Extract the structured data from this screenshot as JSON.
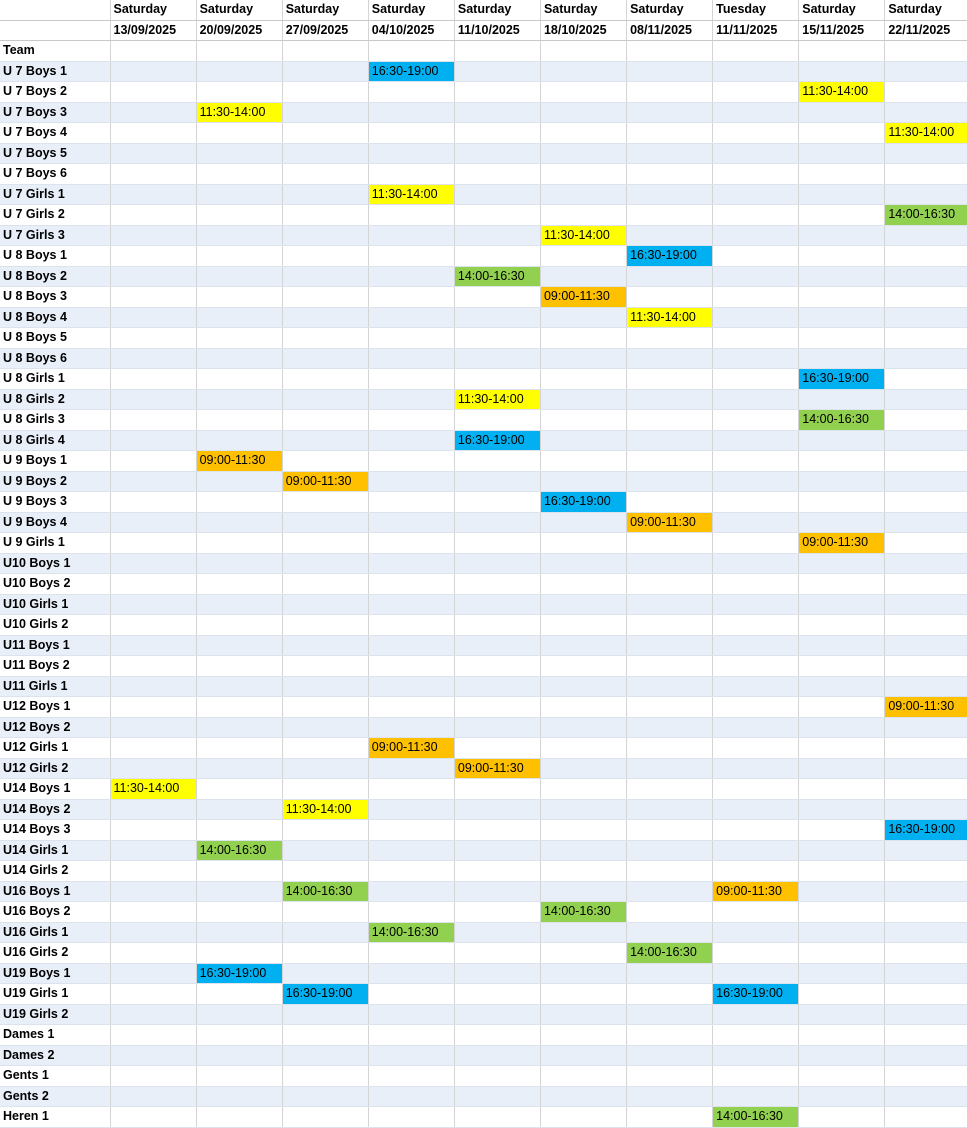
{
  "header": {
    "days": [
      "Saturday",
      "Saturday",
      "Saturday",
      "Saturday",
      "Saturday",
      "Saturday",
      "Saturday",
      "Tuesday",
      "Saturday",
      "Saturday"
    ],
    "dates": [
      "13/09/2025",
      "20/09/2025",
      "27/09/2025",
      "04/10/2025",
      "11/10/2025",
      "18/10/2025",
      "08/11/2025",
      "11/11/2025",
      "15/11/2025",
      "22/11/2025"
    ]
  },
  "team_header": "Team",
  "colors": {
    "yellow": "#ffff00",
    "orange": "#ffc000",
    "green": "#92d050",
    "blue": "#00b0f0"
  },
  "rows": [
    {
      "team": "U 7 Boys 1",
      "slots": [
        "",
        "",
        "",
        "16:30-19:00",
        "",
        "",
        "",
        "",
        "",
        ""
      ]
    },
    {
      "team": "U 7 Boys 2",
      "slots": [
        "",
        "",
        "",
        "",
        "",
        "",
        "",
        "",
        "11:30-14:00",
        ""
      ]
    },
    {
      "team": "U 7 Boys 3",
      "slots": [
        "",
        "11:30-14:00",
        "",
        "",
        "",
        "",
        "",
        "",
        "",
        ""
      ]
    },
    {
      "team": "U 7 Boys 4",
      "slots": [
        "",
        "",
        "",
        "",
        "",
        "",
        "",
        "",
        "",
        "11:30-14:00"
      ]
    },
    {
      "team": "U 7 Boys 5",
      "slots": [
        "",
        "",
        "",
        "",
        "",
        "",
        "",
        "",
        "",
        ""
      ]
    },
    {
      "team": "U 7 Boys 6",
      "slots": [
        "",
        "",
        "",
        "",
        "",
        "",
        "",
        "",
        "",
        ""
      ]
    },
    {
      "team": "U 7 Girls 1",
      "slots": [
        "",
        "",
        "",
        "11:30-14:00",
        "",
        "",
        "",
        "",
        "",
        ""
      ]
    },
    {
      "team": "U 7 Girls 2",
      "slots": [
        "",
        "",
        "",
        "",
        "",
        "",
        "",
        "",
        "",
        "14:00-16:30"
      ]
    },
    {
      "team": "U 7 Girls 3",
      "slots": [
        "",
        "",
        "",
        "",
        "",
        "11:30-14:00",
        "",
        "",
        "",
        ""
      ]
    },
    {
      "team": "U 8 Boys 1",
      "slots": [
        "",
        "",
        "",
        "",
        "",
        "",
        "16:30-19:00",
        "",
        "",
        ""
      ]
    },
    {
      "team": "U 8 Boys 2",
      "slots": [
        "",
        "",
        "",
        "",
        "14:00-16:30",
        "",
        "",
        "",
        "",
        ""
      ]
    },
    {
      "team": "U 8 Boys 3",
      "slots": [
        "",
        "",
        "",
        "",
        "",
        "09:00-11:30",
        "",
        "",
        "",
        ""
      ]
    },
    {
      "team": "U 8 Boys 4",
      "slots": [
        "",
        "",
        "",
        "",
        "",
        "",
        "11:30-14:00",
        "",
        "",
        ""
      ]
    },
    {
      "team": "U 8 Boys 5",
      "slots": [
        "",
        "",
        "",
        "",
        "",
        "",
        "",
        "",
        "",
        ""
      ]
    },
    {
      "team": "U 8 Boys 6",
      "slots": [
        "",
        "",
        "",
        "",
        "",
        "",
        "",
        "",
        "",
        ""
      ]
    },
    {
      "team": "U 8 Girls 1",
      "slots": [
        "",
        "",
        "",
        "",
        "",
        "",
        "",
        "",
        "16:30-19:00",
        ""
      ]
    },
    {
      "team": "U 8 Girls 2",
      "slots": [
        "",
        "",
        "",
        "",
        "11:30-14:00",
        "",
        "",
        "",
        "",
        ""
      ]
    },
    {
      "team": "U 8 Girls 3",
      "slots": [
        "",
        "",
        "",
        "",
        "",
        "",
        "",
        "",
        "14:00-16:30",
        ""
      ]
    },
    {
      "team": "U 8 Girls 4",
      "slots": [
        "",
        "",
        "",
        "",
        "16:30-19:00",
        "",
        "",
        "",
        "",
        ""
      ]
    },
    {
      "team": "U 9 Boys 1",
      "slots": [
        "",
        "09:00-11:30",
        "",
        "",
        "",
        "",
        "",
        "",
        "",
        ""
      ]
    },
    {
      "team": "U 9 Boys 2",
      "slots": [
        "",
        "",
        "09:00-11:30",
        "",
        "",
        "",
        "",
        "",
        "",
        ""
      ]
    },
    {
      "team": "U 9 Boys 3",
      "slots": [
        "",
        "",
        "",
        "",
        "",
        "16:30-19:00",
        "",
        "",
        "",
        ""
      ]
    },
    {
      "team": "U 9 Boys 4",
      "slots": [
        "",
        "",
        "",
        "",
        "",
        "",
        "09:00-11:30",
        "",
        "",
        ""
      ]
    },
    {
      "team": "U 9 Girls 1",
      "slots": [
        "",
        "",
        "",
        "",
        "",
        "",
        "",
        "",
        "09:00-11:30",
        ""
      ]
    },
    {
      "team": "U10 Boys 1",
      "slots": [
        "",
        "",
        "",
        "",
        "",
        "",
        "",
        "",
        "",
        ""
      ]
    },
    {
      "team": "U10 Boys 2",
      "slots": [
        "",
        "",
        "",
        "",
        "",
        "",
        "",
        "",
        "",
        ""
      ]
    },
    {
      "team": "U10 Girls 1",
      "slots": [
        "",
        "",
        "",
        "",
        "",
        "",
        "",
        "",
        "",
        ""
      ]
    },
    {
      "team": "U10 Girls 2",
      "slots": [
        "",
        "",
        "",
        "",
        "",
        "",
        "",
        "",
        "",
        ""
      ]
    },
    {
      "team": "U11 Boys 1",
      "slots": [
        "",
        "",
        "",
        "",
        "",
        "",
        "",
        "",
        "",
        ""
      ]
    },
    {
      "team": "U11 Boys 2",
      "slots": [
        "",
        "",
        "",
        "",
        "",
        "",
        "",
        "",
        "",
        ""
      ]
    },
    {
      "team": "U11 Girls 1",
      "slots": [
        "",
        "",
        "",
        "",
        "",
        "",
        "",
        "",
        "",
        ""
      ]
    },
    {
      "team": "U12 Boys 1",
      "slots": [
        "",
        "",
        "",
        "",
        "",
        "",
        "",
        "",
        "",
        "09:00-11:30"
      ]
    },
    {
      "team": "U12 Boys 2",
      "slots": [
        "",
        "",
        "",
        "",
        "",
        "",
        "",
        "",
        "",
        ""
      ]
    },
    {
      "team": "U12 Girls 1",
      "slots": [
        "",
        "",
        "",
        "09:00-11:30",
        "",
        "",
        "",
        "",
        "",
        ""
      ]
    },
    {
      "team": "U12 Girls 2",
      "slots": [
        "",
        "",
        "",
        "",
        "09:00-11:30",
        "",
        "",
        "",
        "",
        ""
      ]
    },
    {
      "team": "U14 Boys 1",
      "slots": [
        "11:30-14:00",
        "",
        "",
        "",
        "",
        "",
        "",
        "",
        "",
        ""
      ]
    },
    {
      "team": "U14 Boys 2",
      "slots": [
        "",
        "",
        "11:30-14:00",
        "",
        "",
        "",
        "",
        "",
        "",
        ""
      ]
    },
    {
      "team": "U14 Boys 3",
      "slots": [
        "",
        "",
        "",
        "",
        "",
        "",
        "",
        "",
        "",
        "16:30-19:00"
      ]
    },
    {
      "team": "U14 Girls 1",
      "slots": [
        "",
        "14:00-16:30",
        "",
        "",
        "",
        "",
        "",
        "",
        "",
        ""
      ]
    },
    {
      "team": "U14 Girls 2",
      "slots": [
        "",
        "",
        "",
        "",
        "",
        "",
        "",
        "",
        "",
        ""
      ]
    },
    {
      "team": "U16 Boys 1",
      "slots": [
        "",
        "",
        "14:00-16:30",
        "",
        "",
        "",
        "",
        "09:00-11:30",
        "",
        ""
      ]
    },
    {
      "team": "U16 Boys 2",
      "slots": [
        "",
        "",
        "",
        "",
        "",
        "14:00-16:30",
        "",
        "",
        "",
        ""
      ]
    },
    {
      "team": "U16 Girls 1",
      "slots": [
        "",
        "",
        "",
        "14:00-16:30",
        "",
        "",
        "",
        "",
        "",
        ""
      ]
    },
    {
      "team": "U16 Girls 2",
      "slots": [
        "",
        "",
        "",
        "",
        "",
        "",
        "14:00-16:30",
        "",
        "",
        ""
      ]
    },
    {
      "team": "U19 Boys 1",
      "slots": [
        "",
        "16:30-19:00",
        "",
        "",
        "",
        "",
        "",
        "",
        "",
        ""
      ]
    },
    {
      "team": "U19 Girls 1",
      "slots": [
        "",
        "",
        "16:30-19:00",
        "",
        "",
        "",
        "",
        "16:30-19:00",
        "",
        ""
      ]
    },
    {
      "team": "U19 Girls 2",
      "slots": [
        "",
        "",
        "",
        "",
        "",
        "",
        "",
        "",
        "",
        ""
      ]
    },
    {
      "team": "Dames 1",
      "slots": [
        "",
        "",
        "",
        "",
        "",
        "",
        "",
        "",
        "",
        ""
      ]
    },
    {
      "team": "Dames 2",
      "slots": [
        "",
        "",
        "",
        "",
        "",
        "",
        "",
        "",
        "",
        ""
      ]
    },
    {
      "team": "Gents 1",
      "slots": [
        "",
        "",
        "",
        "",
        "",
        "",
        "",
        "",
        "",
        ""
      ]
    },
    {
      "team": "Gents 2",
      "slots": [
        "",
        "",
        "",
        "",
        "",
        "",
        "",
        "",
        "",
        ""
      ]
    },
    {
      "team": "Heren 1",
      "slots": [
        "",
        "",
        "",
        "",
        "",
        "",
        "",
        "14:00-16:30",
        "",
        ""
      ]
    }
  ]
}
